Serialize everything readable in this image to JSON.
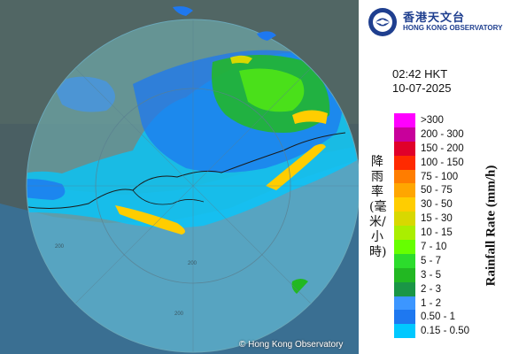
{
  "header": {
    "logo_chinese": "香港天文台",
    "logo_english": "HONG KONG OBSERVATORY"
  },
  "timestamp": {
    "time": "02:42 HKT",
    "date": "10-07-2025"
  },
  "legend": {
    "title_chinese": "降雨率(毫米/小時)",
    "title_english": "Rainfall Rate (mm/h)",
    "items": [
      {
        "label": ">300",
        "color": "#ff00ff"
      },
      {
        "label": "200 - 300",
        "color": "#c8009b"
      },
      {
        "label": "150 - 200",
        "color": "#e0002a"
      },
      {
        "label": "100 - 150",
        "color": "#ff2a00"
      },
      {
        "label": "75 - 100",
        "color": "#ff7d00"
      },
      {
        "label": "50 - 75",
        "color": "#ffa600"
      },
      {
        "label": "30 - 50",
        "color": "#ffcd00"
      },
      {
        "label": "15 - 30",
        "color": "#d8d800"
      },
      {
        "label": "10 - 15",
        "color": "#aaee00"
      },
      {
        "label": "7 - 10",
        "color": "#66ff00"
      },
      {
        "label": "5 - 7",
        "color": "#2cdc2c"
      },
      {
        "label": "3 - 5",
        "color": "#22b822"
      },
      {
        "label": "2 - 3",
        "color": "#1a9646"
      },
      {
        "label": "1 - 2",
        "color": "#3c96ff"
      },
      {
        "label": "0.50 - 1",
        "color": "#1e78f0"
      },
      {
        "label": "0.15 - 0.50",
        "color": "#00c8ff"
      }
    ]
  },
  "map": {
    "range_ring_labels": [
      "200",
      "200",
      "200"
    ],
    "credit": "© Hong Kong Observatory",
    "colors": {
      "terrain": "#4a5f63",
      "sea": "#3a6f92",
      "radar_coverage": "#6fd0e8"
    }
  }
}
